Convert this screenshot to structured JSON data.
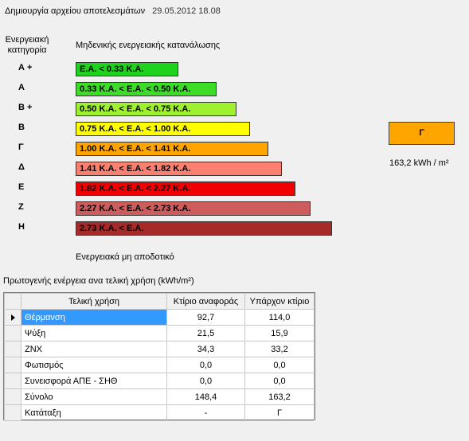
{
  "header": {
    "title": "Δημιουργία αρχείου αποτελεσμάτων",
    "date": "29.05.2012 18.08"
  },
  "scale": {
    "category_heading_line1": "Ενεργειακή",
    "category_heading_line2": "κατηγορία",
    "top_note": "Μηδενικής ενεργειακής κατανάλωσης",
    "bottom_note": "Ενεργειακά μη αποδοτικό",
    "bars": [
      {
        "category": "Α +",
        "label": "Ε.Α. < 0.33 Κ.Α.",
        "color": "#1ed21e"
      },
      {
        "category": "Α",
        "label": "0.33 Κ.Α. <  Ε.Α. < 0.50 Κ.Α.",
        "color": "#3cdc28"
      },
      {
        "category": "Β +",
        "label": "0.50 Κ.Α. <  Ε.Α. < 0.75 Κ.Α.",
        "color": "#a0f032"
      },
      {
        "category": "Β",
        "label": "0.75 Κ.Α. <  Ε.Α. < 1.00 Κ.Α.",
        "color": "#ffff00"
      },
      {
        "category": "Γ",
        "label": "1.00 Κ.Α. <  Ε.Α. < 1.41 Κ.Α.",
        "color": "#ffa500"
      },
      {
        "category": "Δ",
        "label": "1.41 Κ.Α. <  Ε.Α. < 1.82 Κ.Α.",
        "color": "#fa8072"
      },
      {
        "category": "Ε",
        "label": "1.82 Κ.Α. <  Ε.Α. < 2.27 Κ.Α.",
        "color": "#f00000"
      },
      {
        "category": "Ζ",
        "label": "2.27 Κ.Α. <  Ε.Α. < 2.73 Κ.Α.",
        "color": "#cd5c5c"
      },
      {
        "category": "Η",
        "label": "2.73 Κ.Α. <  Ε.Α.",
        "color": "#a52a2a"
      }
    ]
  },
  "result": {
    "category": "Γ",
    "value": "163,2 kWh / m²",
    "color": "#ffa500"
  },
  "table": {
    "title": "Πρωτογενής ενέργεια ανα τελική χρήση (kWh/m²)",
    "columns": [
      "Τελική χρήση",
      "Κτίριο αναφοράς",
      "Υπάρχον κτίριο"
    ],
    "rows": [
      {
        "name": "Θέρμανση",
        "reference": "92,7",
        "existing": "114,0"
      },
      {
        "name": "Ψύξη",
        "reference": "21,5",
        "existing": "15,9"
      },
      {
        "name": "ΖΝΧ",
        "reference": "34,3",
        "existing": "33,2"
      },
      {
        "name": "Φωτισμός",
        "reference": "0,0",
        "existing": "0,0"
      },
      {
        "name": "Συνεισφορά ΑΠΕ - ΣΗΘ",
        "reference": "0,0",
        "existing": "0,0"
      },
      {
        "name": "Σύνολο",
        "reference": "148,4",
        "existing": "163,2"
      },
      {
        "name": "Κατάταξη",
        "reference": "-",
        "existing": "Γ"
      }
    ]
  }
}
